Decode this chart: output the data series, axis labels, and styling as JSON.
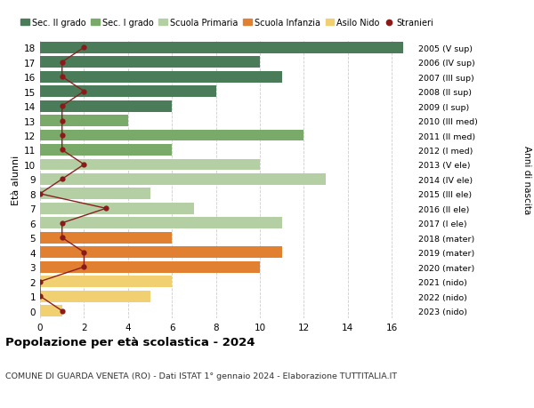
{
  "ages": [
    18,
    17,
    16,
    15,
    14,
    13,
    12,
    11,
    10,
    9,
    8,
    7,
    6,
    5,
    4,
    3,
    2,
    1,
    0
  ],
  "years": [
    "2005 (V sup)",
    "2006 (IV sup)",
    "2007 (III sup)",
    "2008 (II sup)",
    "2009 (I sup)",
    "2010 (III med)",
    "2011 (II med)",
    "2012 (I med)",
    "2013 (V ele)",
    "2014 (IV ele)",
    "2015 (III ele)",
    "2016 (II ele)",
    "2017 (I ele)",
    "2018 (mater)",
    "2019 (mater)",
    "2020 (mater)",
    "2021 (nido)",
    "2022 (nido)",
    "2023 (nido)"
  ],
  "bar_values": [
    16.5,
    10,
    11,
    8,
    6,
    4,
    12,
    6,
    10,
    13,
    5,
    7,
    11,
    6,
    11,
    10,
    6,
    5,
    1
  ],
  "stranieri_values": [
    2,
    1,
    1,
    2,
    1,
    1,
    1,
    1,
    2,
    1,
    0,
    3,
    1,
    1,
    2,
    2,
    0,
    0,
    1
  ],
  "bar_colors": [
    "#4a7c59",
    "#4a7c59",
    "#4a7c59",
    "#4a7c59",
    "#4a7c59",
    "#7aaa6a",
    "#7aaa6a",
    "#7aaa6a",
    "#b5cfa5",
    "#b5cfa5",
    "#b5cfa5",
    "#b5cfa5",
    "#b5cfa5",
    "#e08030",
    "#e08030",
    "#e08030",
    "#f0d070",
    "#f0d070",
    "#f0d070"
  ],
  "color_sec2": "#4a7c59",
  "color_sec1": "#7aaa6a",
  "color_prim": "#b5cfa5",
  "color_inf": "#e08030",
  "color_nido": "#f0d070",
  "color_stranieri": "#8b1a1a",
  "color_line": "#8b2020",
  "title1": "Popolazione per età scolastica - 2024",
  "title2": "COMUNE DI GUARDA VENETA (RO) - Dati ISTAT 1° gennaio 2024 - Elaborazione TUTTITALIA.IT",
  "ylabel_left": "Età alunni",
  "ylabel_right": "Anni di nascita",
  "xlim": [
    0,
    17
  ],
  "bg_color": "#ffffff",
  "grid_color": "#cccccc"
}
